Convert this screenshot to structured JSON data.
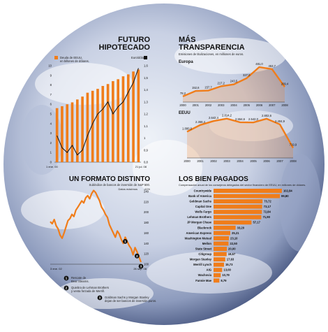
{
  "colors": {
    "accent": "#f07d1a",
    "line": "#111111",
    "globe_dark": "#4e5d86",
    "globe_light": "#e9edf6"
  },
  "mortgage": {
    "title": "FUTURO HIPOTECADO",
    "legend_bar": "Deuda de EEUU, en billones de dólares.",
    "legend_line": "Euro/dólar",
    "x_start": "1 ene. 00",
    "x_end": "21 jul. 08"
  },
  "transparency": {
    "title": "MÁS TRANSPARENCIA",
    "subtitle": "Emisiones de titulizaciones, en milliones de euros.",
    "europe_label": "Europa",
    "usa_label": "EEUU"
  },
  "format": {
    "title": "UN FORMATO DISTINTO",
    "subtitle": "Subíndice de bancos de inversión de S&P 500.",
    "unit": "Datos máximos",
    "pct": "-41%",
    "x_start": "3 ene. 02",
    "x_end": "26 sep. 08",
    "notes": [
      {
        "num": "1",
        "text": "Rescate de Bear Stearns."
      },
      {
        "num": "2",
        "text": "Quiebra de Lehman Brothers y venta forzada de Merrill."
      },
      {
        "num": "3",
        "text": "Goldman Sachs y Morgan Stanley dejan de ser bancos de inversión puros."
      }
    ]
  },
  "paid": {
    "title": "LOS BIEN PAGADOS",
    "subtitle": "Compensación anual de los consejeros delegados del sector financiero de EEUU, en millones de dólares."
  },
  "chart_data": [
    {
      "type": "bar",
      "id": "futuro-hipotecado",
      "title": "FUTURO HIPOTECADO",
      "series": [
        {
          "name": "Deuda de EEUU, en billones de dólares.",
          "axis": "left",
          "values": [
            5.6,
            5.8,
            6.0,
            6.2,
            6.5,
            6.8,
            7.2,
            7.4,
            7.6,
            7.9,
            8.1,
            8.4,
            8.6,
            8.9,
            9.1,
            9.4,
            9.6
          ]
        }
      ],
      "line_series": {
        "name": "Euro/dólar",
        "axis": "right",
        "values": [
          1.02,
          0.92,
          0.88,
          0.94,
          0.86,
          0.9,
          1.02,
          1.12,
          1.2,
          1.24,
          1.3,
          1.2,
          1.26,
          1.3,
          1.38,
          1.46,
          1.58
        ]
      },
      "ylim_left": [
        0,
        10
      ],
      "ylim_right": [
        0.8,
        1.6
      ],
      "yticks_left": [
        0,
        1,
        2,
        3,
        4,
        5,
        6,
        7,
        8,
        9,
        10
      ],
      "yticks_right": [
        0.8,
        0.9,
        1,
        1.1,
        1.2,
        1.3,
        1.4,
        1.5,
        1.6
      ],
      "ytick_labels_right": [
        "0,8",
        "0,9",
        "1",
        "1,1",
        "1,2",
        "1,3",
        "1,4",
        "1,5",
        "1,6"
      ],
      "x_labels": [
        "1 ene. 00",
        "21 jul. 08"
      ]
    },
    {
      "type": "area",
      "id": "europa",
      "title": "Europa",
      "categories": [
        "2000",
        "2001",
        "2002",
        "2003",
        "2004",
        "2005",
        "2006",
        "2007",
        "2008"
      ],
      "values": [
        78.2,
        152.6,
        157.7,
        217.2,
        243.5,
        327.0,
        481.0,
        453.7,
        209.4
      ],
      "value_labels": [
        "78,2",
        "152,6",
        "157,7",
        "217,2",
        "243,5",
        "327,0",
        "481,0",
        "453,7",
        "209,4"
      ],
      "ylim": [
        0,
        520
      ]
    },
    {
      "type": "area",
      "id": "eeuu",
      "title": "EEUU",
      "categories": [
        "2000",
        "2001",
        "2002",
        "2003",
        "2004",
        "2005",
        "2006",
        "2007",
        "2008"
      ],
      "values": [
        1880.0,
        2358.4,
        2642.4,
        2814.2,
        2554.6,
        2542.0,
        2802.6,
        2404.9,
        719.9
      ],
      "value_labels": [
        "1.880,0",
        "2.358,4",
        "2.642,4",
        "2.814,2",
        "2.554,6",
        "2.542,0",
        "2.802,6",
        "2.404,9",
        "719,9"
      ],
      "ylim": [
        0,
        3000
      ]
    },
    {
      "type": "line",
      "id": "un-formato-distinto",
      "title": "UN FORMATO DISTINTO",
      "values": [
        182,
        178,
        186,
        174,
        168,
        156,
        150,
        160,
        172,
        184,
        188,
        196,
        192,
        204,
        210,
        216,
        222,
        218,
        228,
        232,
        226,
        236,
        242,
        238,
        230,
        222,
        210,
        204,
        196,
        190,
        176,
        168,
        160,
        152,
        164,
        158,
        148,
        140,
        152,
        144,
        136,
        130,
        118,
        132,
        124,
        114,
        104
      ],
      "ylim": [
        100,
        240
      ],
      "yticks": [
        100,
        120,
        140,
        160,
        180,
        200,
        220,
        240
      ],
      "markers": [
        {
          "num": "1",
          "index": 38
        },
        {
          "num": "2",
          "index": 44
        },
        {
          "num": "3",
          "index": 46
        }
      ],
      "x_labels": [
        "3 ene. 02",
        "26 sep. 08"
      ]
    },
    {
      "type": "bar",
      "id": "los-bien-pagados",
      "title": "LOS BIEN PAGADOS",
      "orientation": "horizontal",
      "categories": [
        "Countrywide",
        "Bank of America",
        "Goldman Sachs",
        "Capital One",
        "Wells Fargo",
        "Lehman Brothers",
        "JP Morgan Chase",
        "Blackrock",
        "American Express",
        "Washington Mutual",
        "Mellon",
        "State Street",
        "Citigroup",
        "Morgan Stanley",
        "Merrill Lynch",
        "AIG",
        "Wachovia",
        "Fannie Mae"
      ],
      "values": [
        102.84,
        99.8,
        73.72,
        73.17,
        72.84,
        71.9,
        57.17,
        33.2,
        25.21,
        23.1,
        22.5,
        20.0,
        19.67,
        17.63,
        15.73,
        13.0,
        10.79,
        8.79
      ],
      "value_labels": [
        "102,84",
        "99,80",
        "73,72",
        "73,17",
        "72,84",
        "71,90",
        "57,17",
        "33,20",
        "25,21",
        "23,10",
        "22,50",
        "20,00",
        "19,67",
        "17,63",
        "15,73",
        "13,00",
        "10,79",
        "8,79"
      ],
      "xlim": [
        0,
        105
      ]
    }
  ]
}
